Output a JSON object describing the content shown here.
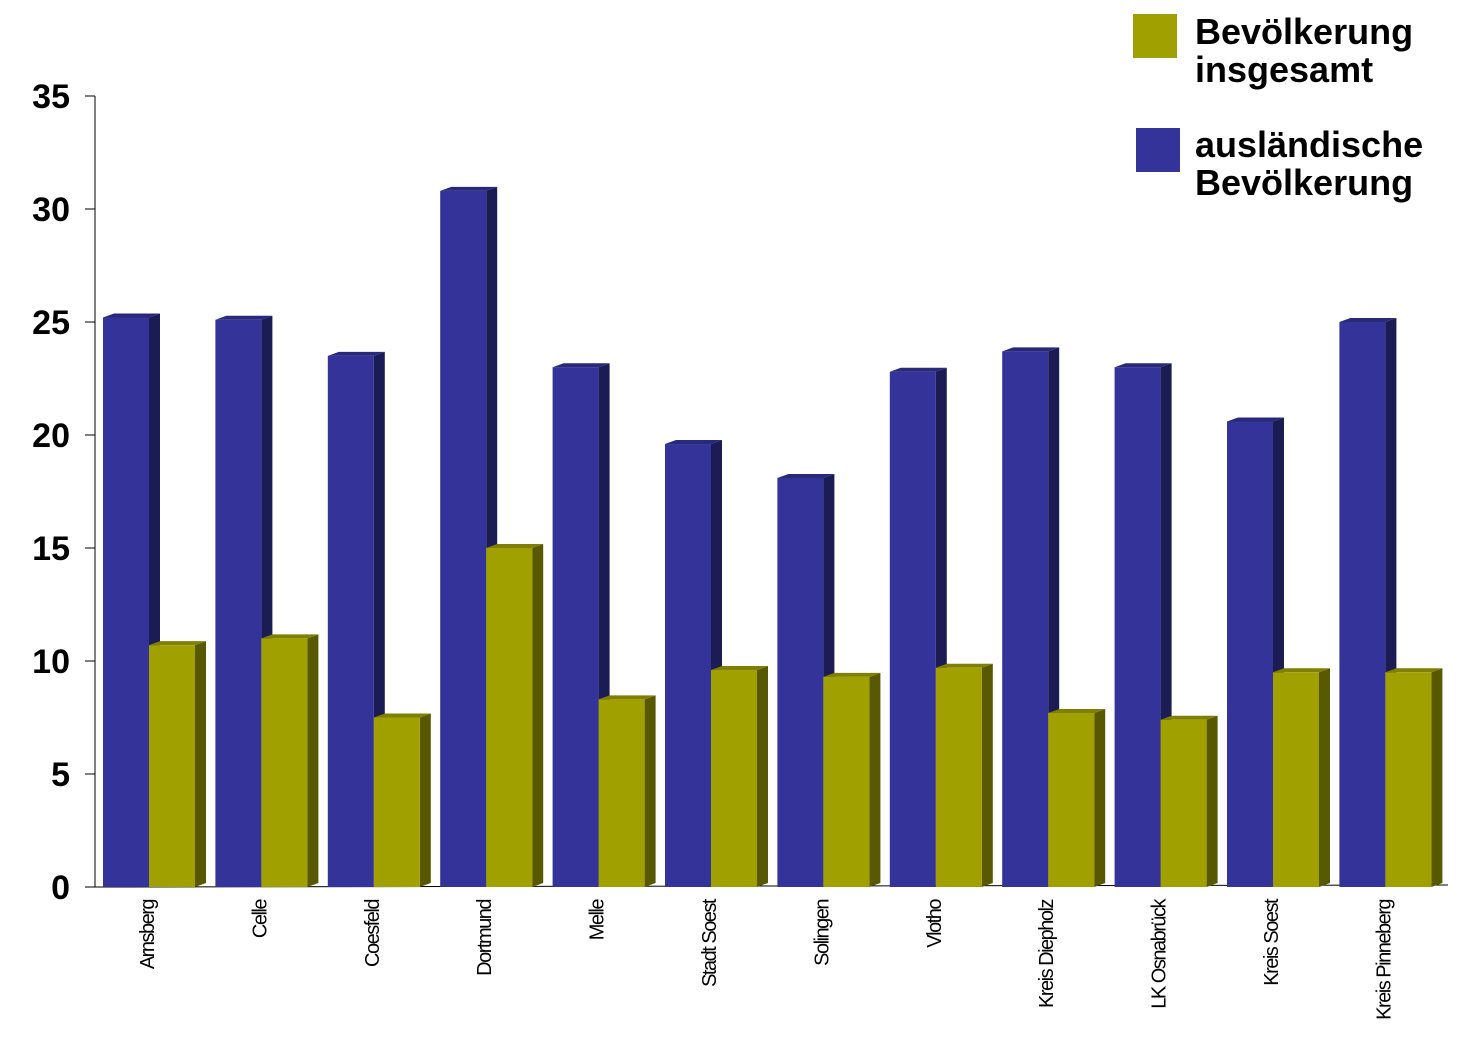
{
  "chart_data": {
    "type": "bar",
    "categories": [
      "Arnsberg",
      "Celle",
      "Coesfeld",
      "Dortmund",
      "Melle",
      "Stadt Soest",
      "Solingen",
      "Vlotho",
      "Kreis Diepholz",
      "LK Osnabrück",
      "Kreis Soest",
      "Kreis Pinneberg"
    ],
    "series": [
      {
        "name": "ausländische Bevölkerung",
        "color": "#333399",
        "values": [
          25.2,
          25.1,
          23.5,
          30.8,
          23.0,
          19.6,
          18.1,
          22.8,
          23.7,
          23.0,
          20.6,
          25.0
        ]
      },
      {
        "name": "Bevölkerung insgesamt",
        "color": "#a0a000",
        "values": [
          10.7,
          11.0,
          7.5,
          15.0,
          8.3,
          9.6,
          9.3,
          9.7,
          7.7,
          7.4,
          9.5,
          9.5
        ]
      }
    ],
    "ylim": [
      0,
      35
    ],
    "yticks": [
      "0",
      "5",
      "10",
      "15",
      "20",
      "25",
      "30",
      "35"
    ],
    "legend": {
      "placement": "top-right",
      "entries": [
        {
          "lines": [
            "Bevölkerung",
            "insgesamt"
          ],
          "color": "#a0a000"
        },
        {
          "lines": [
            "ausländische",
            "Bevölkerung"
          ],
          "color": "#333399"
        }
      ]
    },
    "grid": false
  }
}
